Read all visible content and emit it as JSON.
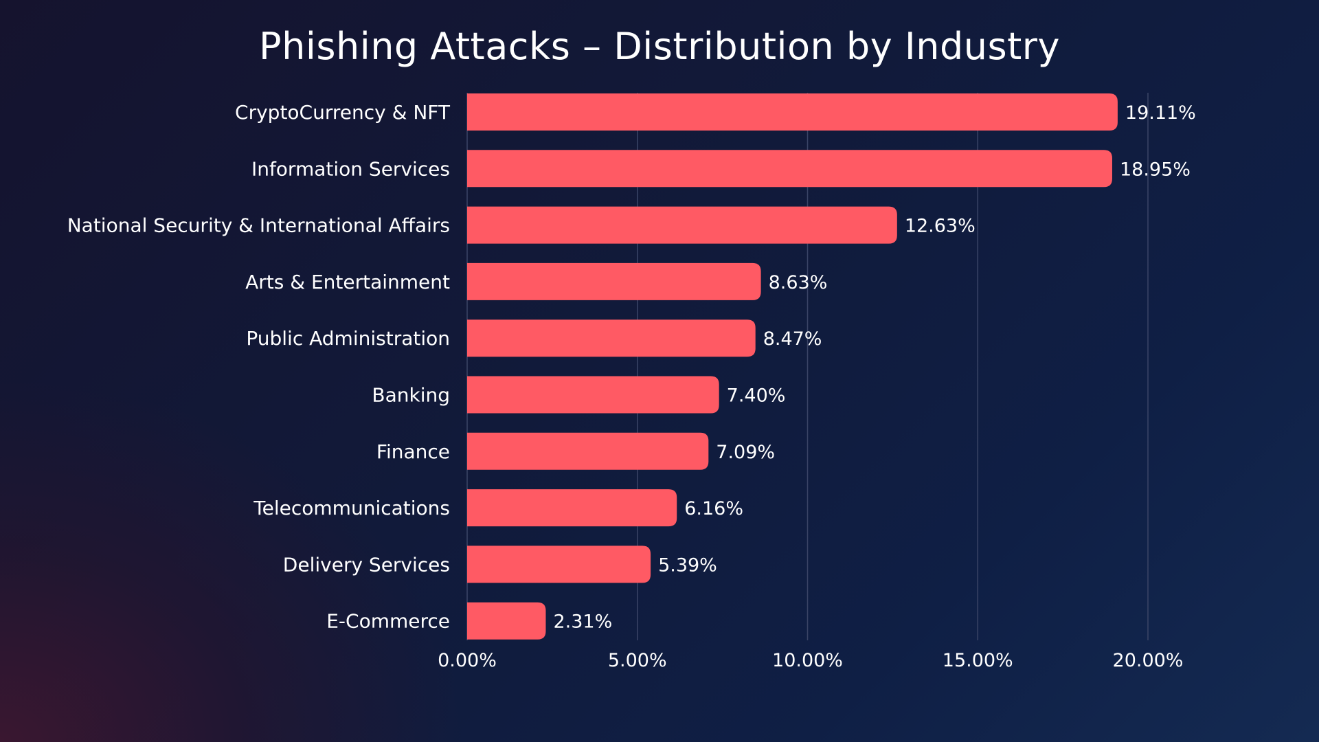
{
  "chart_data": {
    "type": "bar",
    "orientation": "horizontal",
    "title": "Phishing Attacks – Distribution by Industry",
    "xlabel": "",
    "ylabel": "",
    "categories": [
      "CryptoCurrency & NFT",
      "Information Services",
      "National Security & International Affairs",
      "Arts & Entertainment",
      "Public Administration",
      "Banking",
      "Finance",
      "Telecommunications",
      "Delivery Services",
      "E-Commerce"
    ],
    "values": [
      19.11,
      18.95,
      12.63,
      8.63,
      8.47,
      7.4,
      7.09,
      6.16,
      5.39,
      2.31
    ],
    "value_labels": [
      "19.11%",
      "18.95%",
      "12.63%",
      "8.63%",
      "8.47%",
      "7.40%",
      "7.09%",
      "6.16%",
      "5.39%",
      "2.31%"
    ],
    "xlim": [
      0,
      20
    ],
    "xticks": [
      0,
      5,
      10,
      15,
      20
    ],
    "xtick_labels": [
      "0.00%",
      "5.00%",
      "10.00%",
      "15.00%",
      "20.00%"
    ],
    "grid": true,
    "legend": "none",
    "colors": {
      "bar": "#ff5a64",
      "text": "#ffffff",
      "grid": "#3a4466"
    }
  }
}
